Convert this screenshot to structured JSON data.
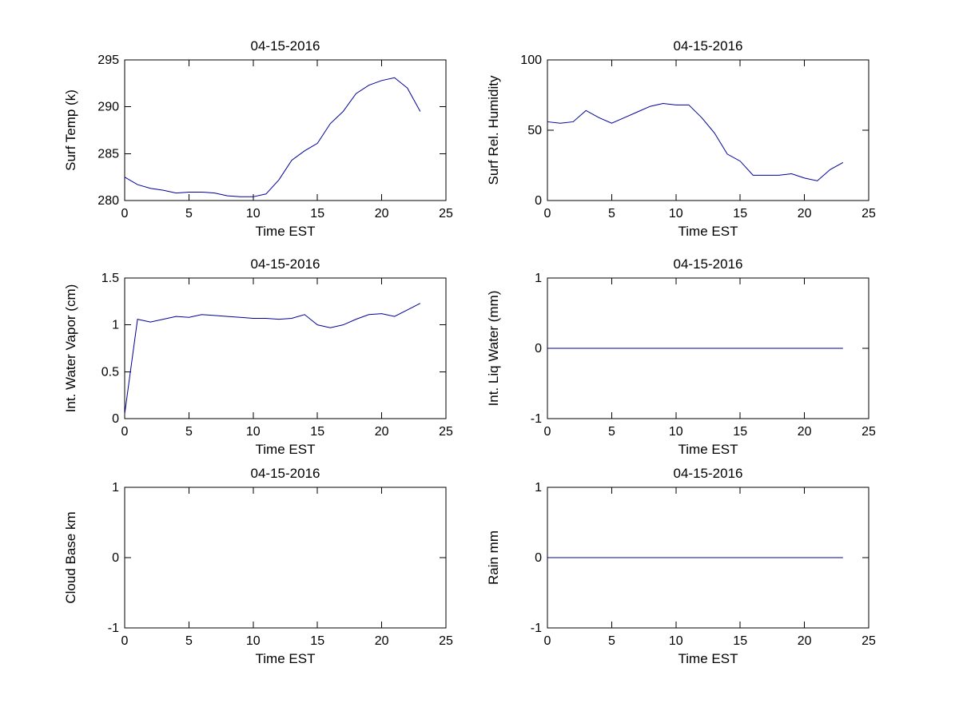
{
  "figure": {
    "background": "#ffffff",
    "axis_color": "#000000",
    "line_color": "#000099",
    "grid": "off",
    "legend": "none"
  },
  "chart_data": [
    {
      "id": "surf-temp",
      "type": "line",
      "title": "04-15-2016",
      "xlabel": "Time EST",
      "ylabel": "Surf Temp (k)",
      "xlim": [
        0,
        25
      ],
      "ylim": [
        280,
        295
      ],
      "xticks": [
        0,
        5,
        10,
        15,
        20,
        25
      ],
      "yticks": [
        280,
        285,
        290,
        295
      ],
      "x": [
        0,
        1,
        2,
        3,
        4,
        5,
        6,
        7,
        8,
        9,
        10,
        11,
        12,
        13,
        14,
        15,
        16,
        17,
        18,
        19,
        20,
        21,
        22,
        23
      ],
      "y": [
        282.5,
        281.7,
        281.3,
        281.1,
        280.8,
        280.9,
        280.9,
        280.8,
        280.5,
        280.4,
        280.4,
        280.7,
        282.2,
        284.3,
        285.3,
        286.1,
        288.2,
        289.5,
        291.4,
        292.3,
        292.8,
        293.1,
        292.0,
        289.5
      ]
    },
    {
      "id": "surf-rel-humidity",
      "type": "line",
      "title": "04-15-2016",
      "xlabel": "Time EST",
      "ylabel": "Surf Rel. Humidity",
      "xlim": [
        0,
        25
      ],
      "ylim": [
        0,
        100
      ],
      "xticks": [
        0,
        5,
        10,
        15,
        20,
        25
      ],
      "yticks": [
        0,
        50,
        100
      ],
      "x": [
        0,
        1,
        2,
        3,
        4,
        5,
        6,
        7,
        8,
        9,
        10,
        11,
        12,
        13,
        14,
        15,
        16,
        17,
        18,
        19,
        20,
        21,
        22,
        23
      ],
      "y": [
        56,
        55,
        56,
        64,
        59,
        55,
        59,
        63,
        67,
        69,
        68,
        68,
        59,
        48,
        33,
        28,
        18,
        18,
        18,
        19,
        16,
        14,
        22,
        27
      ]
    },
    {
      "id": "int-water-vapor",
      "type": "line",
      "title": "04-15-2016",
      "xlabel": "Time EST",
      "ylabel": "Int. Water Vapor (cm)",
      "xlim": [
        0,
        25
      ],
      "ylim": [
        0,
        1.5
      ],
      "xticks": [
        0,
        5,
        10,
        15,
        20,
        25
      ],
      "yticks": [
        0,
        0.5,
        1,
        1.5
      ],
      "x": [
        0,
        1,
        2,
        3,
        4,
        5,
        6,
        7,
        8,
        9,
        10,
        11,
        12,
        13,
        14,
        15,
        16,
        17,
        18,
        19,
        20,
        21,
        22,
        23
      ],
      "y": [
        0.05,
        1.06,
        1.03,
        1.06,
        1.09,
        1.08,
        1.11,
        1.1,
        1.09,
        1.08,
        1.07,
        1.07,
        1.06,
        1.07,
        1.11,
        1.0,
        0.97,
        1.0,
        1.06,
        1.11,
        1.12,
        1.09,
        1.16,
        1.23
      ]
    },
    {
      "id": "int-liq-water",
      "type": "line",
      "title": "04-15-2016",
      "xlabel": "Time EST",
      "ylabel": "Int. Liq Water (mm)",
      "xlim": [
        0,
        25
      ],
      "ylim": [
        -1,
        1
      ],
      "xticks": [
        0,
        5,
        10,
        15,
        20,
        25
      ],
      "yticks": [
        -1,
        0,
        1
      ],
      "x": [
        0,
        1,
        2,
        3,
        4,
        5,
        6,
        7,
        8,
        9,
        10,
        11,
        12,
        13,
        14,
        15,
        16,
        17,
        18,
        19,
        20,
        21,
        22,
        23
      ],
      "y": [
        0,
        0,
        0,
        0,
        0,
        0,
        0,
        0,
        0,
        0,
        0,
        0,
        0,
        0,
        0,
        0,
        0,
        0,
        0,
        0,
        0,
        0,
        0,
        0
      ]
    },
    {
      "id": "cloud-base",
      "type": "line",
      "title": "04-15-2016",
      "xlabel": "Time EST",
      "ylabel": "Cloud Base km",
      "xlim": [
        0,
        25
      ],
      "ylim": [
        -1,
        1
      ],
      "xticks": [
        0,
        5,
        10,
        15,
        20,
        25
      ],
      "yticks": [
        -1,
        0,
        1
      ],
      "x": [],
      "y": []
    },
    {
      "id": "rain",
      "type": "line",
      "title": "04-15-2016",
      "xlabel": "Time EST",
      "ylabel": "Rain mm",
      "xlim": [
        0,
        25
      ],
      "ylim": [
        -1,
        1
      ],
      "xticks": [
        0,
        5,
        10,
        15,
        20,
        25
      ],
      "yticks": [
        -1,
        0,
        1
      ],
      "x": [
        0,
        1,
        2,
        3,
        4,
        5,
        6,
        7,
        8,
        9,
        10,
        11,
        12,
        13,
        14,
        15,
        16,
        17,
        18,
        19,
        20,
        21,
        22,
        23
      ],
      "y": [
        0,
        0,
        0,
        0,
        0,
        0,
        0,
        0,
        0,
        0,
        0,
        0,
        0,
        0,
        0,
        0,
        0,
        0,
        0,
        0,
        0,
        0,
        0,
        0
      ]
    }
  ]
}
